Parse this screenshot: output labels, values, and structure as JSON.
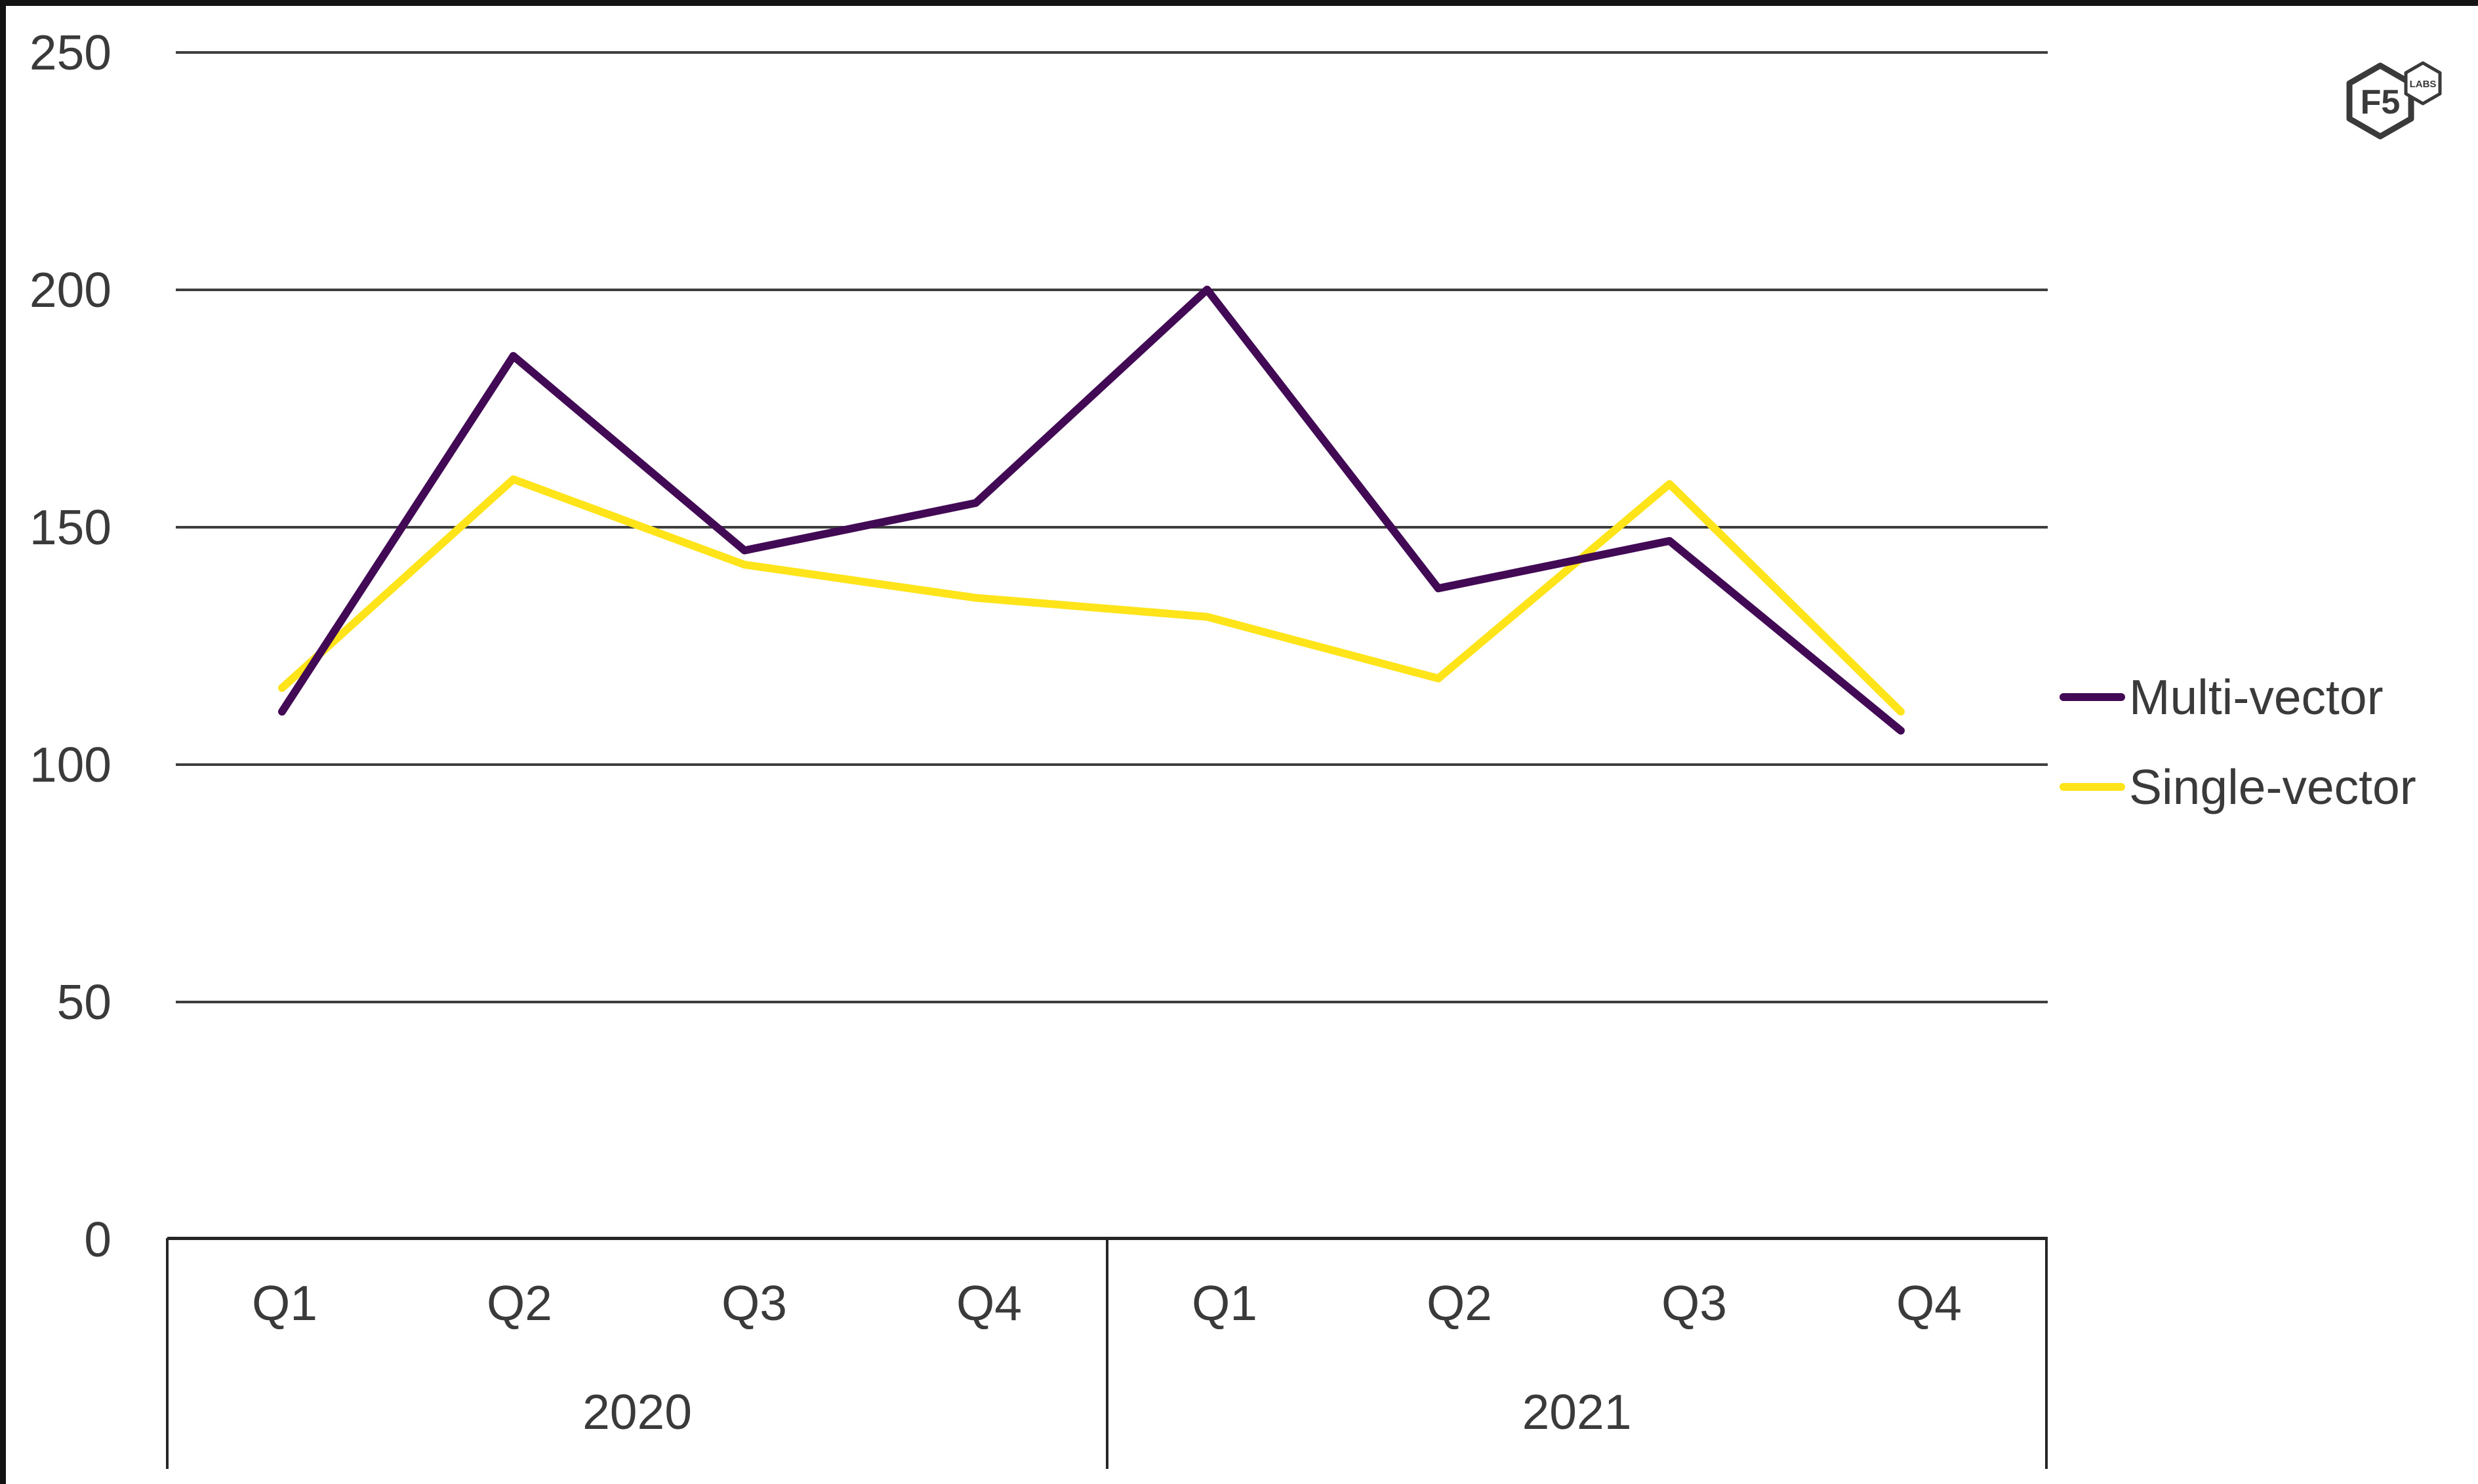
{
  "page": {
    "background": "#ffffff",
    "frame_color": "#131313"
  },
  "axis": {
    "text_color": "#3a3a3a",
    "gridline_color": "#3e3e3e"
  },
  "chart_data": {
    "type": "line",
    "title": "",
    "categories": [
      "Q1",
      "Q2",
      "Q3",
      "Q4",
      "Q1",
      "Q2",
      "Q3",
      "Q4"
    ],
    "category_groups": [
      {
        "label": "2020",
        "span": 4
      },
      {
        "label": "2021",
        "span": 4
      }
    ],
    "series": [
      {
        "name": "Multi-vector",
        "color": "#420955",
        "values": [
          111,
          186,
          145,
          155,
          200,
          137,
          147,
          107
        ]
      },
      {
        "name": "Single-vector",
        "color": "#FFE419",
        "values": [
          116,
          160,
          142,
          135,
          131,
          118,
          159,
          111
        ]
      }
    ],
    "ylim": [
      0,
      250
    ],
    "yticks": [
      "250",
      "200",
      "150",
      "100",
      "50",
      "0"
    ],
    "grid": "horizontal",
    "legend_position": "right",
    "xlabel": "",
    "ylabel": ""
  },
  "brand": {
    "big_text": "F5",
    "small_text": "LABS"
  }
}
